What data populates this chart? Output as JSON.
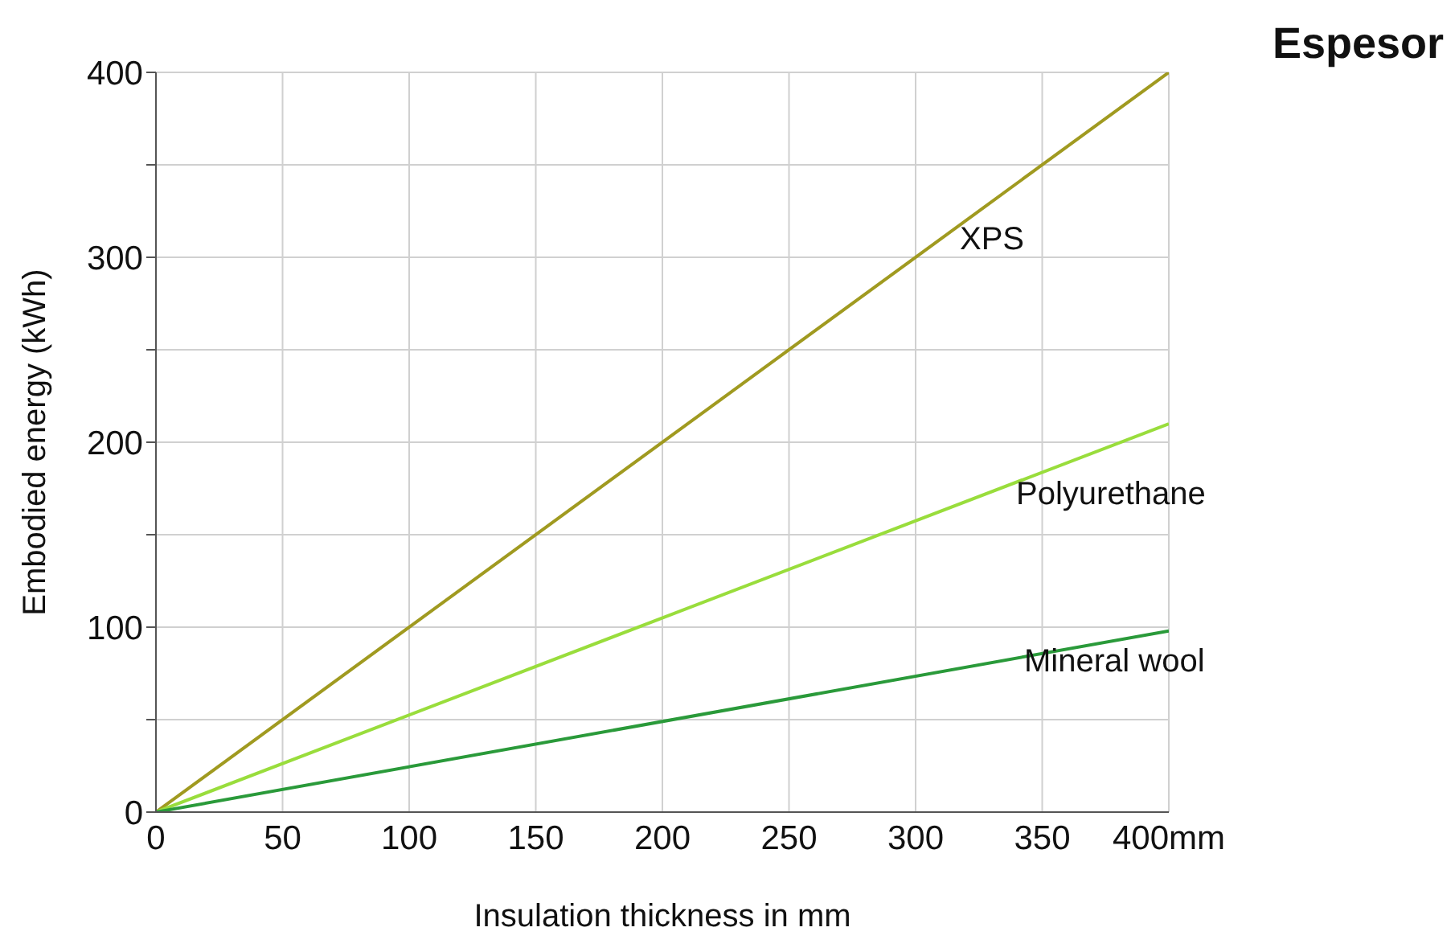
{
  "chart_data": {
    "type": "line",
    "title": "Espesor",
    "xlabel": "Insulation thickness in mm",
    "ylabel": "Embodied energy (kWh)",
    "x": [
      0,
      400
    ],
    "series": [
      {
        "name": "XPS",
        "color": "#a09a20",
        "values": [
          0,
          400
        ]
      },
      {
        "name": "Polyurethane",
        "color": "#99dd3c",
        "values": [
          0,
          210
        ]
      },
      {
        "name": "Mineral wool",
        "color": "#2a9a3a",
        "values": [
          0,
          98
        ]
      }
    ],
    "xlim": [
      0,
      400
    ],
    "xticks": [
      0,
      50,
      100,
      150,
      200,
      250,
      300,
      350,
      {
        "value": 400,
        "label": "400mm"
      }
    ],
    "ylim": [
      0,
      400
    ],
    "yticks": [
      0,
      {
        "value": 50,
        "label": null
      },
      100,
      {
        "value": 150,
        "label": null
      },
      200,
      {
        "value": 250,
        "label": null
      },
      300,
      {
        "value": 350,
        "label": null
      },
      400
    ],
    "grid": true,
    "marker": "none",
    "line_style": "solid"
  }
}
